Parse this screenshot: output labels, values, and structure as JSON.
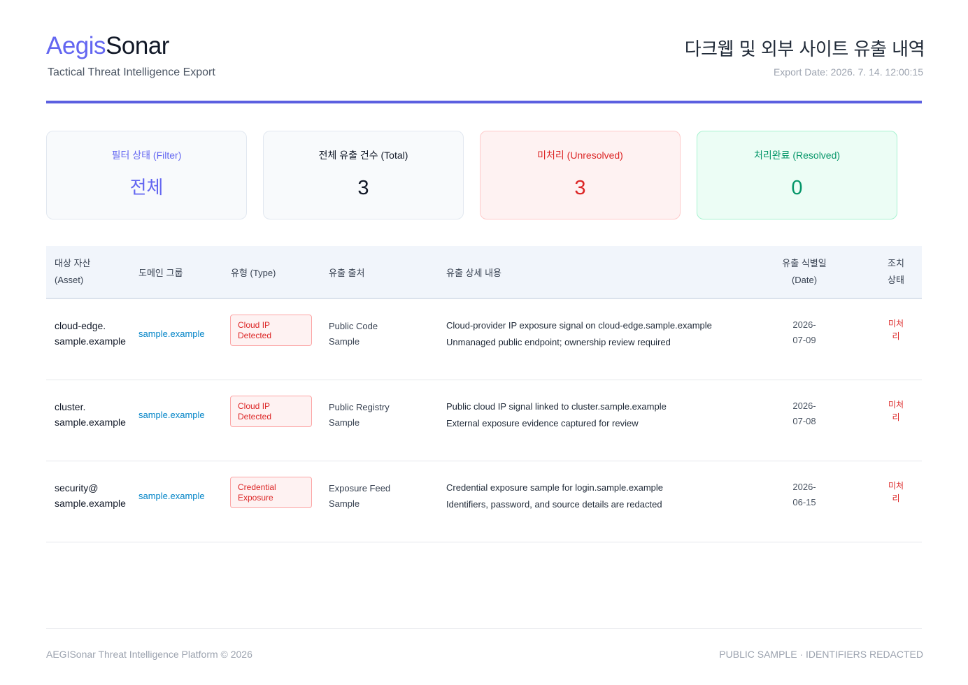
{
  "header": {
    "logo_part1": "Aegis",
    "logo_part2": "Sonar",
    "subtitle": "Tactical Threat Intelligence Export",
    "title": "다크웹 및 외부 사이트 유출 내역",
    "export_date": "Export Date: 2026. 7. 14. 12:00:15"
  },
  "summary": {
    "filter": {
      "label": "필터 상태 (Filter)",
      "value": "전체"
    },
    "total": {
      "label": "전체 유출 건수 (Total)",
      "value": "3"
    },
    "unresolved": {
      "label": "미처리 (Unresolved)",
      "value": "3"
    },
    "resolved": {
      "label": "처리완료 (Resolved)",
      "value": "0"
    }
  },
  "table": {
    "headers": {
      "asset_line1": "대상 자산",
      "asset_line2": "(Asset)",
      "domain": "도메인 그룹",
      "type": "유형 (Type)",
      "source": "유출 출처",
      "detail": "유출 상세 내용",
      "date_line1": "유출 식별일",
      "date_line2": "(Date)",
      "status_line1": "조치",
      "status_line2": "상태"
    },
    "rows": [
      {
        "asset_line1": "cloud-edge.",
        "asset_line2": "sample.example",
        "domain": "sample.example",
        "type_line1": "Cloud IP",
        "type_line2": "Detected",
        "source_line1": "Public Code",
        "source_line2": "Sample",
        "detail_line1": "Cloud-provider IP exposure signal on cloud-edge.sample.example",
        "detail_line2": "Unmanaged public endpoint; ownership review required",
        "date_line1": "2026-",
        "date_line2": "07-09",
        "status_line1": "미처",
        "status_line2": "리"
      },
      {
        "asset_line1": "cluster.",
        "asset_line2": "sample.example",
        "domain": "sample.example",
        "type_line1": "Cloud IP",
        "type_line2": "Detected",
        "source_line1": "Public Registry",
        "source_line2": "Sample",
        "detail_line1": "Public cloud IP signal linked to cluster.sample.example",
        "detail_line2": "External exposure evidence captured for review",
        "date_line1": "2026-",
        "date_line2": "07-08",
        "status_line1": "미처",
        "status_line2": "리"
      },
      {
        "asset_line1": "security@",
        "asset_line2": "sample.example",
        "domain": "sample.example",
        "type_line1": "Credential",
        "type_line2": "Exposure",
        "source_line1": "Exposure Feed",
        "source_line2": "Sample",
        "detail_line1": "Credential exposure sample for login.sample.example",
        "detail_line2": "Identifiers, password, and source details are redacted",
        "date_line1": "2026-",
        "date_line2": "06-15",
        "status_line1": "미처",
        "status_line2": "리"
      }
    ]
  },
  "footer": {
    "left": "AEGISonar Threat Intelligence Platform © 2026",
    "right": "PUBLIC SAMPLE · IDENTIFIERS REDACTED"
  },
  "colors": {
    "accent": "#6366f1",
    "danger": "#dc2626",
    "success": "#059669",
    "link": "#0284c7"
  }
}
